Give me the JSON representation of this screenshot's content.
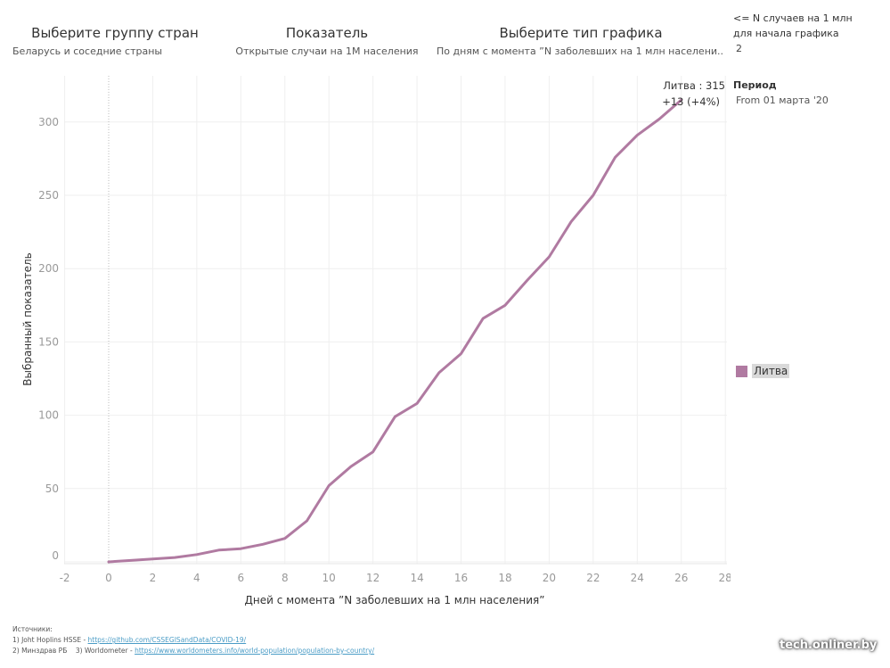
{
  "filters": {
    "group": {
      "title": "Выберите группу стран",
      "value": "Беларусь и соседние страны"
    },
    "metric": {
      "title": "Показатель",
      "value": "Открытые случаи на 1М населения"
    },
    "chart_type": {
      "title": "Выберите тип графика",
      "value": "По дням с момента ”N заболевших на 1 млн населени.."
    }
  },
  "params": {
    "n_threshold": {
      "title_line1": "<= N случаев на 1 млн",
      "title_line2": "для начала графика",
      "value": "2"
    },
    "period": {
      "title": "Период",
      "value": "From 01 марта '20"
    }
  },
  "tooltip": {
    "line1": "Литва : 315",
    "line2": "+13 (+4%)"
  },
  "legend": {
    "items": [
      {
        "label": "Литва",
        "color": "#b07aa1"
      }
    ]
  },
  "sources": {
    "title": "Источники:",
    "line1_prefix": "1) Joht Hoplins HSSE - ",
    "line1_link": "https://github.com/CSSEGISandData/COVID-19/",
    "line2_prefix": "2) Минздрав РБ    3) Worldometer - ",
    "line2_link": "https://www.worldometers.info/world-population/population-by-country/"
  },
  "watermark": "tech.onliner.by",
  "chart_data": {
    "type": "line",
    "title": "",
    "xlabel": "Дней с момента ”N заболевших на 1 млн населения”",
    "ylabel": "Выбранный показатель",
    "xlim": [
      -3,
      28.5
    ],
    "ylim": [
      -5,
      331
    ],
    "x_ticks": [
      -2,
      0,
      2,
      4,
      6,
      8,
      10,
      12,
      14,
      16,
      18,
      20,
      22,
      24,
      26,
      28
    ],
    "y_ticks": [
      0,
      50,
      100,
      150,
      200,
      250,
      300
    ],
    "grid": true,
    "reference_line_x": 0,
    "legend_position": "right",
    "series": [
      {
        "name": "Литва",
        "color": "#b07aa1",
        "x": [
          0,
          1,
          2,
          3,
          4,
          5,
          6,
          7,
          8,
          9,
          10,
          11,
          12,
          13,
          14,
          15,
          16,
          17,
          18,
          19,
          20,
          21,
          22,
          23,
          24,
          25,
          26
        ],
        "values": [
          0,
          1,
          2,
          3,
          5,
          8,
          9,
          12,
          16,
          28,
          52,
          65,
          75,
          99,
          108,
          129,
          142,
          166,
          175,
          192,
          208,
          232,
          250,
          276,
          291,
          302,
          315
        ]
      }
    ]
  }
}
